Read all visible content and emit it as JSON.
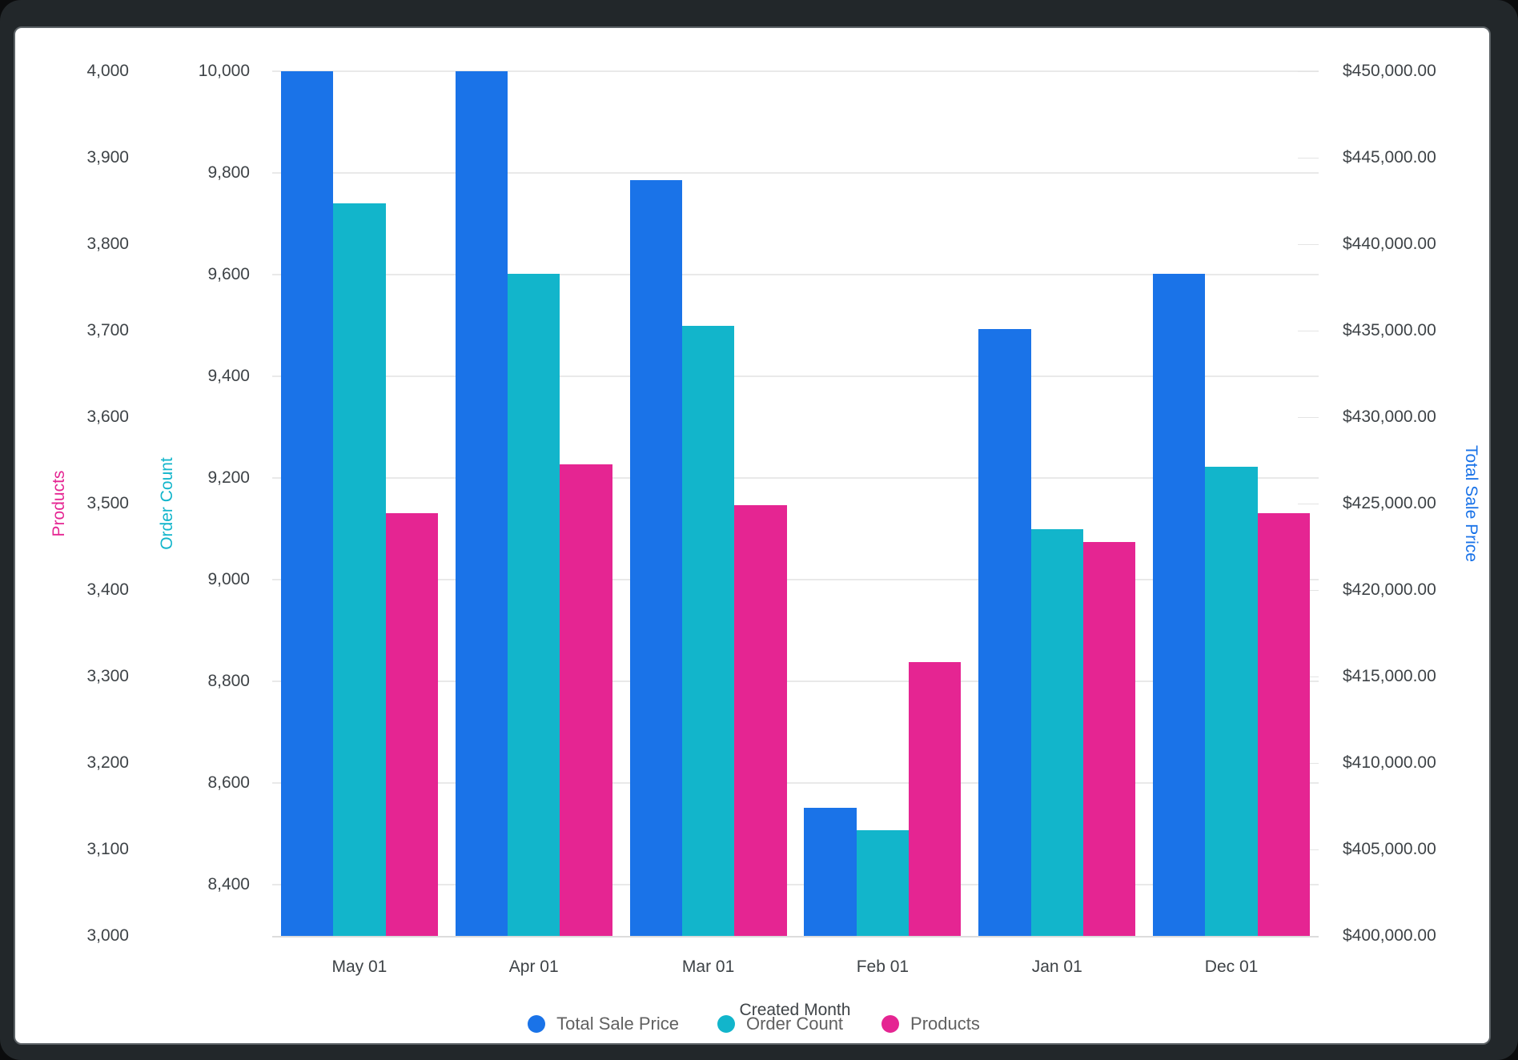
{
  "chart_data": {
    "type": "bar",
    "categories": [
      "May 01",
      "Apr 01",
      "Mar 01",
      "Feb 01",
      "Jan 01",
      "Dec 01"
    ],
    "xlabel": "Created Month",
    "series": [
      {
        "name": "Total Sale Price",
        "axis": "price",
        "color": "#1A73E8",
        "values": [
          450000,
          450000,
          443700,
          407400,
          435100,
          438300
        ]
      },
      {
        "name": "Order Count",
        "axis": "orders",
        "color": "#12B5CB",
        "values": [
          9740,
          9602,
          9500,
          8508,
          9100,
          9222
        ]
      },
      {
        "name": "Products",
        "axis": "products",
        "color": "#E52592",
        "values": [
          3489,
          3545,
          3498,
          3317,
          3456,
          3489
        ]
      }
    ],
    "axes": {
      "products": {
        "title": "Products",
        "title_color": "#E52592",
        "min": 3000,
        "max": 4000,
        "tick_labels": [
          "4,000",
          "3,900",
          "3,800",
          "3,700",
          "3,600",
          "3,500",
          "3,400",
          "3,300",
          "3,200",
          "3,100",
          "3,000"
        ],
        "tick_values": [
          4000,
          3900,
          3800,
          3700,
          3600,
          3500,
          3400,
          3300,
          3200,
          3100,
          3000
        ]
      },
      "orders": {
        "title": "Order Count",
        "title_color": "#12B5CB",
        "min": 8300,
        "max": 10000,
        "tick_labels": [
          "10,000",
          "9,800",
          "9,600",
          "9,400",
          "9,200",
          "9,000",
          "8,800",
          "8,600",
          "8,400"
        ],
        "tick_values": [
          10000,
          9800,
          9600,
          9400,
          9200,
          9000,
          8800,
          8600,
          8400
        ]
      },
      "price": {
        "title": "Total Sale Price",
        "title_color": "#1A73E8",
        "min": 400000,
        "max": 450000,
        "tick_labels": [
          "$450,000.00",
          "$445,000.00",
          "$440,000.00",
          "$435,000.00",
          "$430,000.00",
          "$425,000.00",
          "$420,000.00",
          "$415,000.00",
          "$410,000.00",
          "$405,000.00",
          "$400,000.00"
        ],
        "tick_values": [
          450000,
          445000,
          440000,
          435000,
          430000,
          425000,
          420000,
          415000,
          410000,
          405000,
          400000
        ]
      }
    },
    "legend_position": "bottom",
    "grid": true
  }
}
